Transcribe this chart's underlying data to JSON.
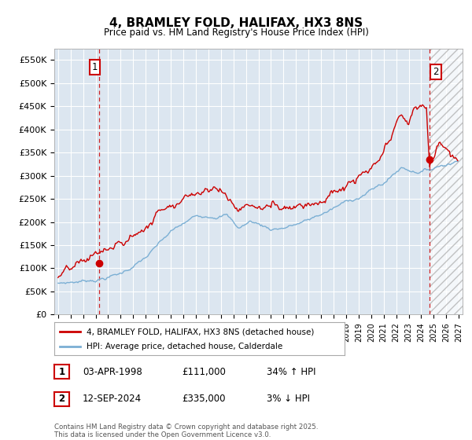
{
  "title": "4, BRAMLEY FOLD, HALIFAX, HX3 8NS",
  "subtitle": "Price paid vs. HM Land Registry's House Price Index (HPI)",
  "background_color": "#ffffff",
  "plot_bg_color": "#dce6f0",
  "grid_color": "#ffffff",
  "hpi_color": "#7bafd4",
  "price_color": "#cc0000",
  "dashed_color": "#cc0000",
  "ylim": [
    0,
    575000
  ],
  "yticks": [
    0,
    50000,
    100000,
    150000,
    200000,
    250000,
    300000,
    350000,
    400000,
    450000,
    500000,
    550000
  ],
  "ytick_labels": [
    "£0",
    "£50K",
    "£100K",
    "£150K",
    "£200K",
    "£250K",
    "£300K",
    "£350K",
    "£400K",
    "£450K",
    "£500K",
    "£550K"
  ],
  "xstart_year": 1995,
  "xend_year": 2027,
  "sale1_label": "1",
  "sale1_date": "03-APR-1998",
  "sale1_price": 111000,
  "sale1_pct": "34% ↑ HPI",
  "sale2_label": "2",
  "sale2_date": "12-SEP-2024",
  "sale2_price": 335000,
  "sale2_pct": "3% ↓ HPI",
  "legend_property": "4, BRAMLEY FOLD, HALIFAX, HX3 8NS (detached house)",
  "legend_hpi": "HPI: Average price, detached house, Calderdale",
  "footnote": "Contains HM Land Registry data © Crown copyright and database right 2025.\nThis data is licensed under the Open Government Licence v3.0."
}
